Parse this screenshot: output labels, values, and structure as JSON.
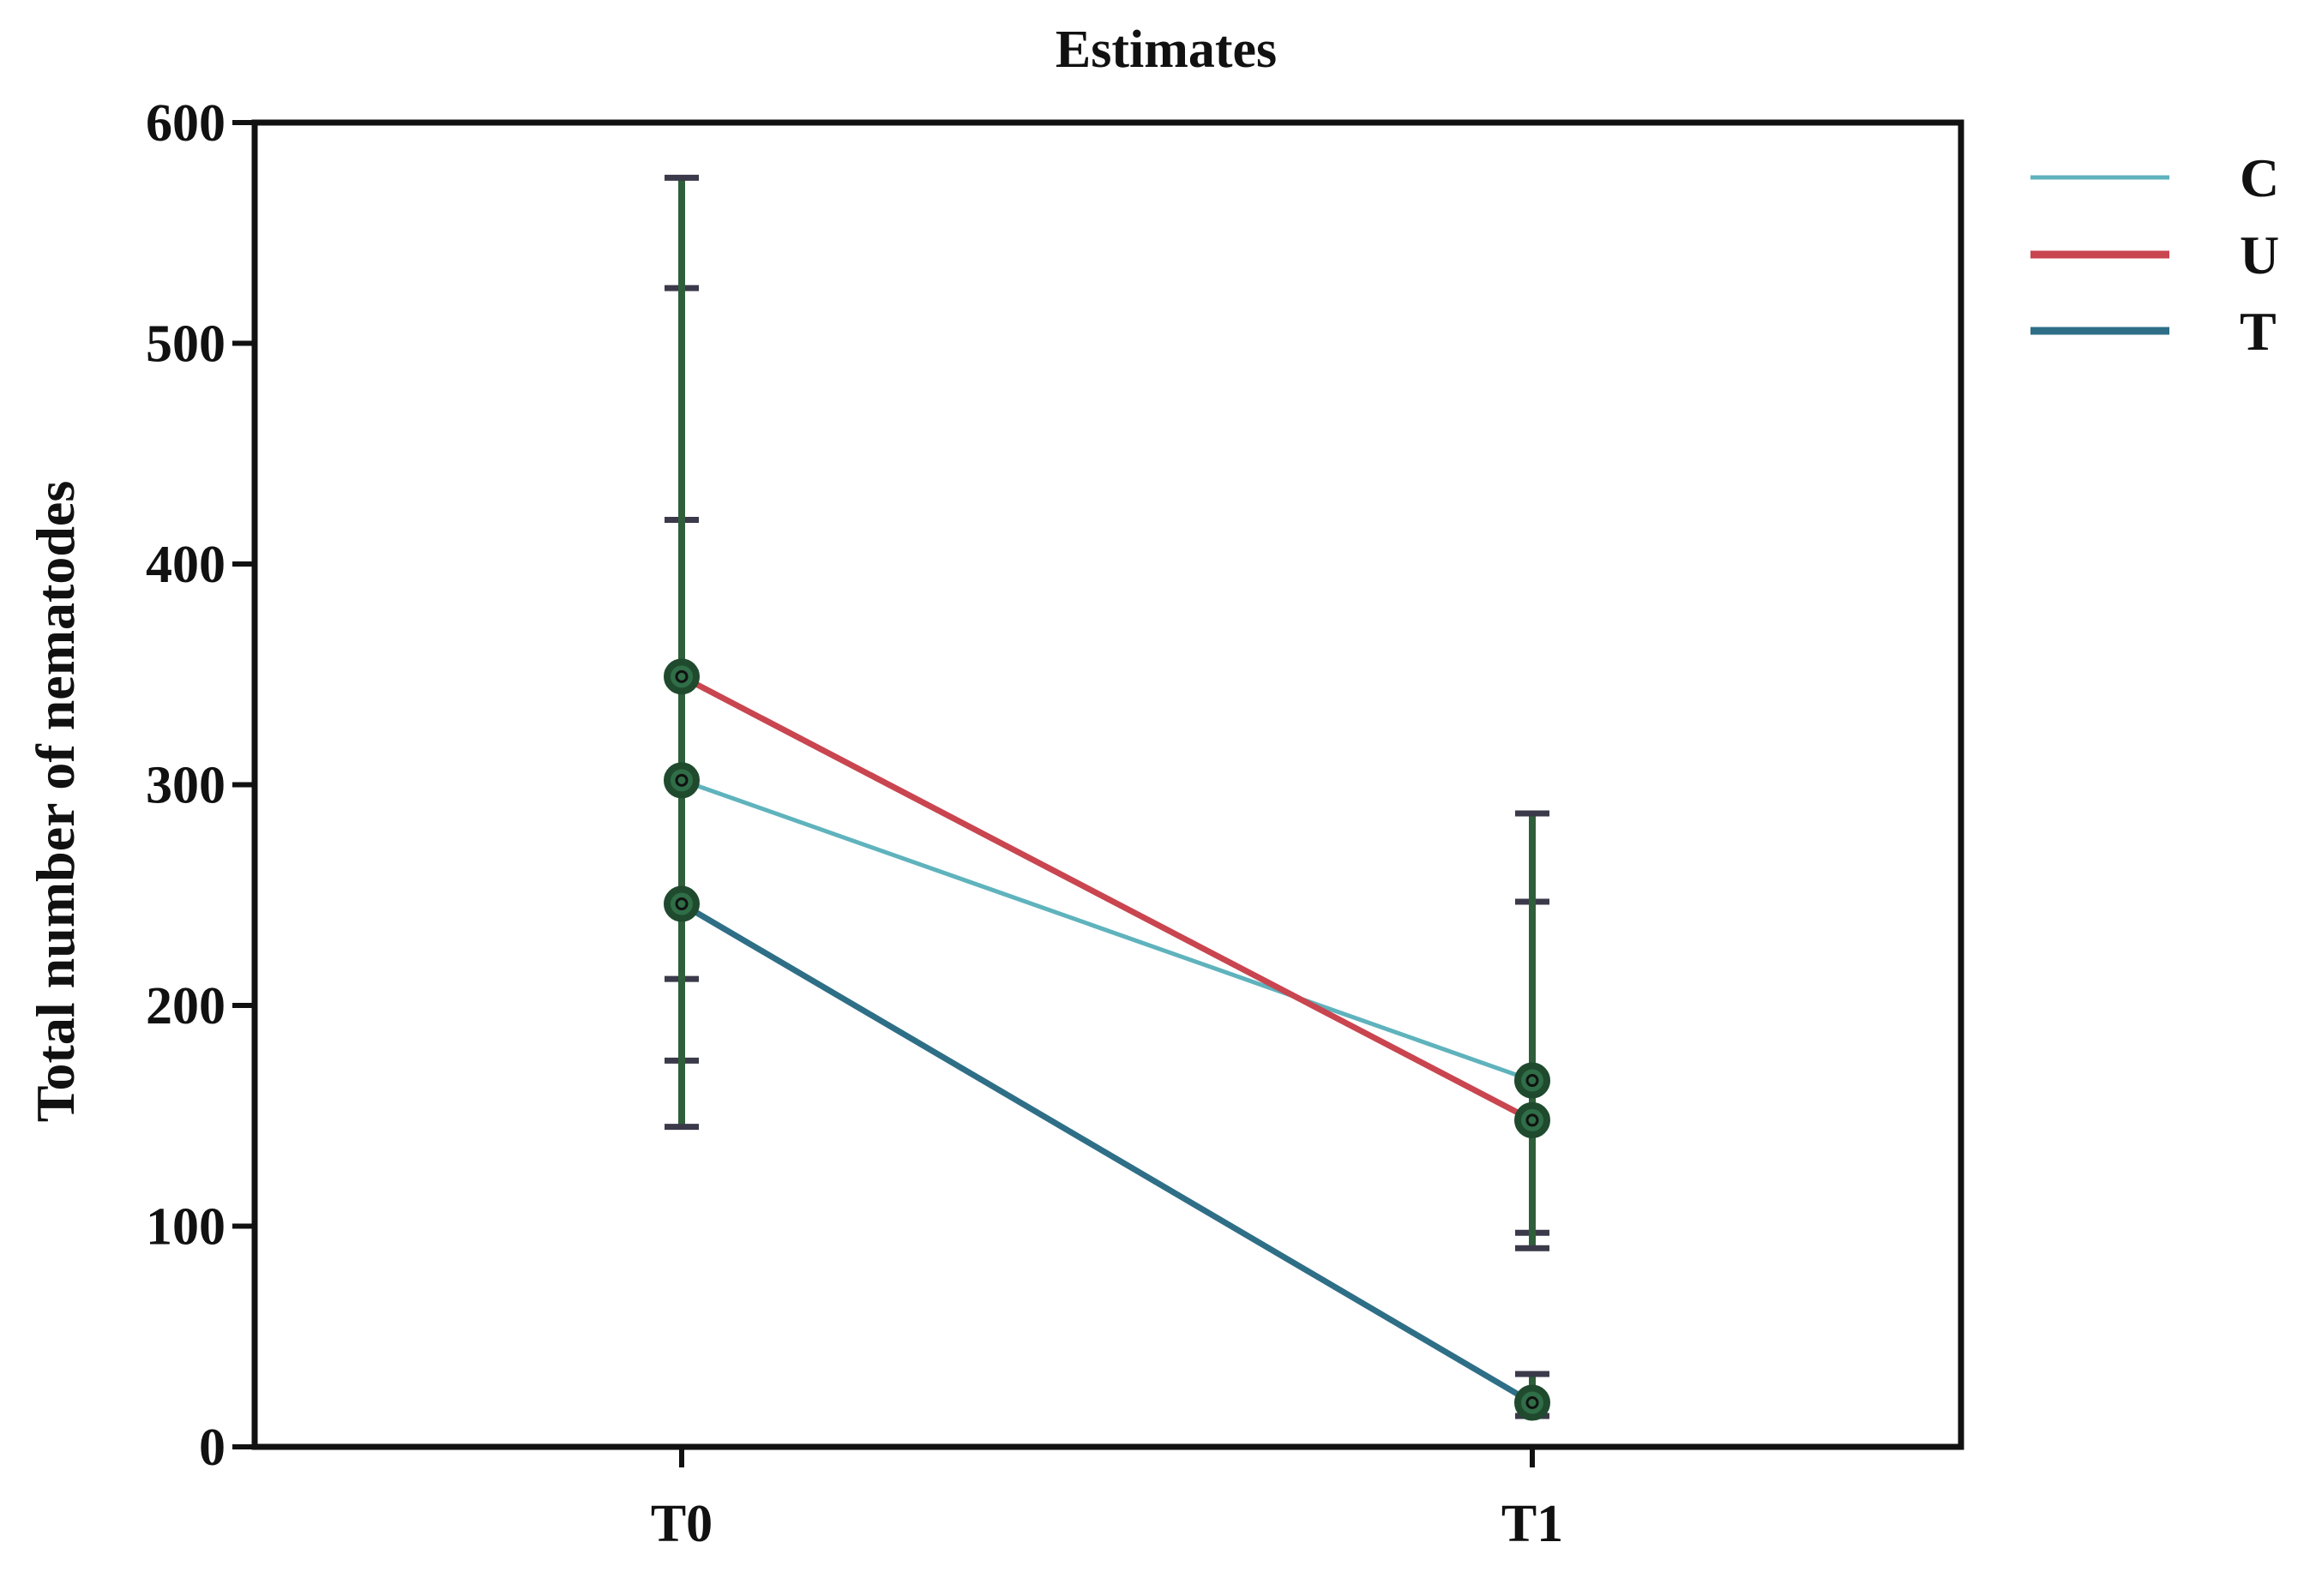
{
  "chart_data": {
    "type": "line",
    "title": "Estimates",
    "xlabel": "",
    "ylabel": "Total number of nematodes",
    "categories": [
      "T0",
      "T1"
    ],
    "ylim": [
      0,
      600
    ],
    "yticks": [
      0,
      100,
      200,
      300,
      400,
      500,
      600
    ],
    "grid": false,
    "legend_position": "right",
    "series": [
      {
        "name": "C",
        "color": "#5fb3bd",
        "values": [
          302,
          166
        ],
        "error_low": [
          175,
          97
        ],
        "error_high": [
          420,
          247
        ]
      },
      {
        "name": "U",
        "color": "#c9454f",
        "values": [
          349,
          148
        ],
        "error_low": [
          212,
          90
        ],
        "error_high": [
          525,
          287
        ]
      },
      {
        "name": "T",
        "color": "#2e6f87",
        "values": [
          246,
          20
        ],
        "error_low": [
          145,
          14
        ],
        "error_high": [
          575,
          33
        ]
      }
    ],
    "errorbar_color": "#2f5f3a",
    "marker_color": "#1f4a2e"
  }
}
